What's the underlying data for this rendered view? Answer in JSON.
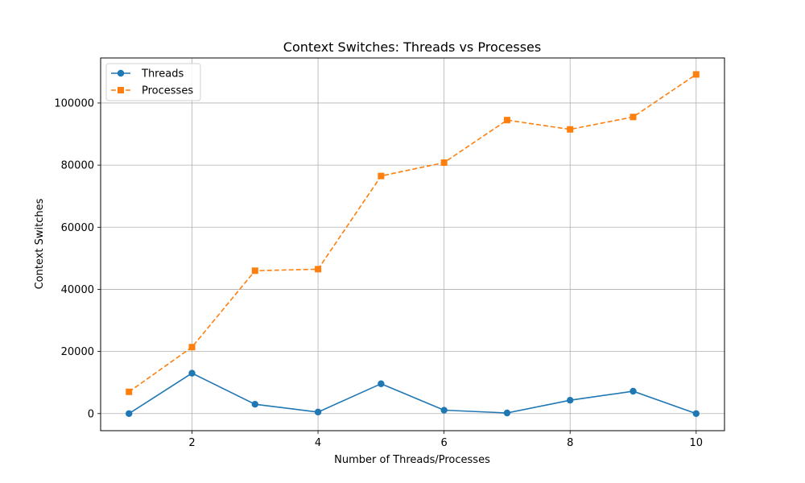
{
  "chart_data": {
    "type": "line",
    "title": "Context Switches: Threads vs Processes",
    "xlabel": "Number of Threads/Processes",
    "ylabel": "Context Switches",
    "x": [
      1,
      2,
      3,
      4,
      5,
      6,
      7,
      8,
      9,
      10
    ],
    "xlim": [
      0.55,
      10.45
    ],
    "ylim": [
      -5500,
      114500
    ],
    "xticks": [
      2,
      4,
      6,
      8,
      10
    ],
    "yticks": [
      0,
      20000,
      40000,
      60000,
      80000,
      100000
    ],
    "grid": true,
    "legend": "top-left",
    "series": [
      {
        "name": "Threads",
        "color": "#1f77b4",
        "marker": "circle",
        "linestyle": "solid",
        "values": [
          0,
          13000,
          3000,
          500,
          9600,
          1100,
          200,
          4300,
          7200,
          0
        ]
      },
      {
        "name": "Processes",
        "color": "#ff7f0e",
        "marker": "square",
        "linestyle": "dashed",
        "values": [
          7000,
          21400,
          46000,
          46500,
          76500,
          80800,
          94500,
          91500,
          95500,
          109200
        ]
      }
    ]
  }
}
